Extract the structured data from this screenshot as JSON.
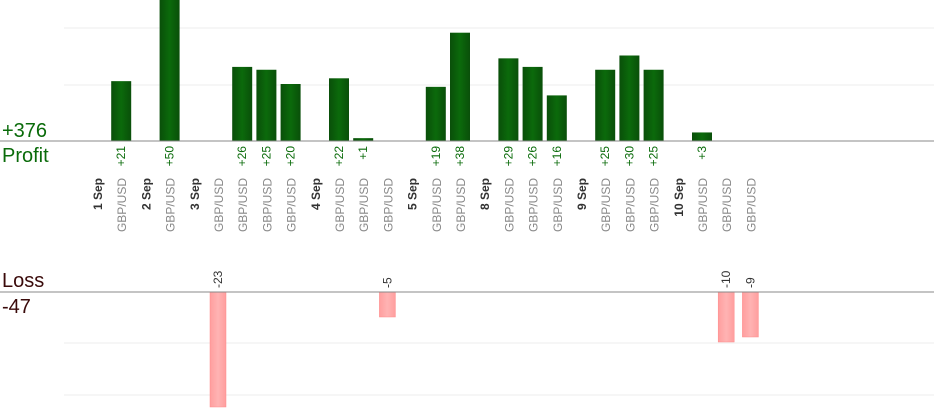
{
  "summary": {
    "profit_total": "+376",
    "profit_label": "Profit",
    "loss_label": "Loss",
    "loss_total": "-47"
  },
  "chart_data": {
    "type": "bar",
    "title": "",
    "colors": {
      "profit_bar": "#0b6a0b",
      "loss_bar": "#ffb3b3",
      "profit_text": "#0a6b0a",
      "loss_text": "#333333",
      "date_text": "#333333",
      "pair_text": "#888888"
    },
    "profit_ylim": [
      0,
      80
    ],
    "loss_ylim": [
      0,
      -25
    ],
    "columns": [
      {
        "kind": "date",
        "label": "1 Sep"
      },
      {
        "kind": "trade",
        "pair": "GBP/USD",
        "value": 21,
        "value_label": "+21"
      },
      {
        "kind": "date",
        "label": "2 Sep"
      },
      {
        "kind": "trade",
        "pair": "GBP/USD",
        "value": 50,
        "value_label": "+50"
      },
      {
        "kind": "date",
        "label": "3 Sep"
      },
      {
        "kind": "trade",
        "pair": "GBP/USD",
        "value": -23,
        "value_label": "-23"
      },
      {
        "kind": "trade",
        "pair": "GBP/USD",
        "value": 26,
        "value_label": "+26"
      },
      {
        "kind": "trade",
        "pair": "GBP/USD",
        "value": 25,
        "value_label": "+25"
      },
      {
        "kind": "trade",
        "pair": "GBP/USD",
        "value": 20,
        "value_label": "+20"
      },
      {
        "kind": "date",
        "label": "4 Sep"
      },
      {
        "kind": "trade",
        "pair": "GBP/USD",
        "value": 22,
        "value_label": "+22"
      },
      {
        "kind": "trade",
        "pair": "GBP/USD",
        "value": 1,
        "value_label": "+1"
      },
      {
        "kind": "trade",
        "pair": "GBP/USD",
        "value": -5,
        "value_label": "-5"
      },
      {
        "kind": "date",
        "label": "5 Sep"
      },
      {
        "kind": "trade",
        "pair": "GBP/USD",
        "value": 19,
        "value_label": "+19"
      },
      {
        "kind": "trade",
        "pair": "GBP/USD",
        "value": 38,
        "value_label": "+38"
      },
      {
        "kind": "date",
        "label": "8 Sep"
      },
      {
        "kind": "trade",
        "pair": "GBP/USD",
        "value": 29,
        "value_label": "+29"
      },
      {
        "kind": "trade",
        "pair": "GBP/USD",
        "value": 26,
        "value_label": "+26"
      },
      {
        "kind": "trade",
        "pair": "GBP/USD",
        "value": 16,
        "value_label": "+16"
      },
      {
        "kind": "date",
        "label": "9 Sep"
      },
      {
        "kind": "trade",
        "pair": "GBP/USD",
        "value": 25,
        "value_label": "+25"
      },
      {
        "kind": "trade",
        "pair": "GBP/USD",
        "value": 30,
        "value_label": "+30"
      },
      {
        "kind": "trade",
        "pair": "GBP/USD",
        "value": 25,
        "value_label": "+25"
      },
      {
        "kind": "date",
        "label": "10 Sep"
      },
      {
        "kind": "trade",
        "pair": "GBP/USD",
        "value": 3,
        "value_label": "+3"
      },
      {
        "kind": "trade",
        "pair": "GBP/USD",
        "value": -10,
        "value_label": "-10"
      },
      {
        "kind": "trade",
        "pair": "GBP/USD",
        "value": -9,
        "value_label": "-9"
      }
    ]
  }
}
